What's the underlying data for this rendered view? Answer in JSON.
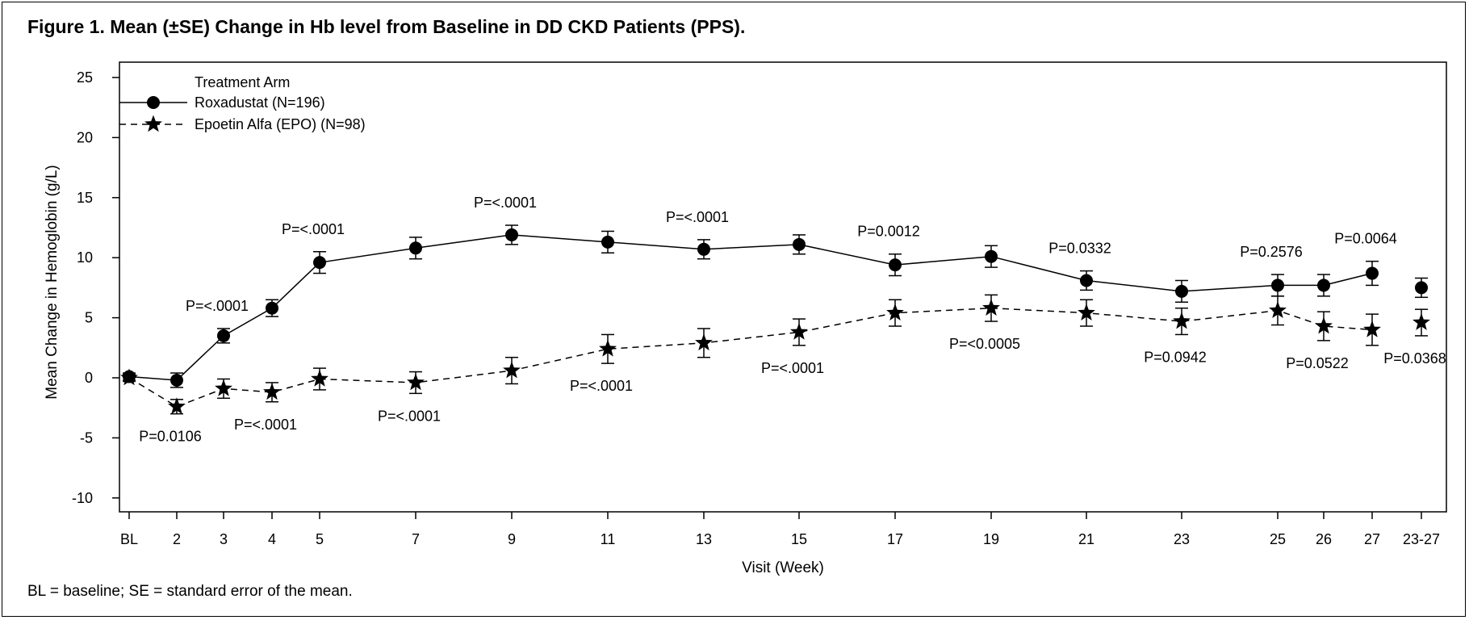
{
  "title": "Figure 1. Mean (±SE) Change in Hb level from Baseline in DD CKD Patients (PPS).",
  "footnote": "BL = baseline; SE = standard error of the mean.",
  "chart_data": {
    "type": "line",
    "xlabel": "Visit (Week)",
    "ylabel": "Mean Change in Hemoglobin (g/L)",
    "ylim": [
      -10,
      25
    ],
    "yticks": [
      -10,
      -5,
      0,
      5,
      10,
      15,
      20,
      25
    ],
    "categories": [
      "BL",
      "2",
      "3",
      "4",
      "5",
      "7",
      "9",
      "11",
      "13",
      "15",
      "17",
      "19",
      "21",
      "23",
      "25",
      "26",
      "27",
      "23-27"
    ],
    "grid": false,
    "legend": {
      "title": "Treatment Arm",
      "placement": "top-left"
    },
    "series": [
      {
        "name": "Roxadustat (N=196)",
        "marker": "circle",
        "line": "solid",
        "values": [
          0.1,
          -0.2,
          3.5,
          5.8,
          9.6,
          10.8,
          11.9,
          11.3,
          10.7,
          11.1,
          9.4,
          10.1,
          8.1,
          7.2,
          7.7,
          7.7,
          8.7,
          7.5
        ],
        "se": [
          0.3,
          0.6,
          0.6,
          0.7,
          0.9,
          0.9,
          0.8,
          0.9,
          0.8,
          0.8,
          0.9,
          0.9,
          0.8,
          0.9,
          0.9,
          0.9,
          1.0,
          0.8
        ],
        "connected": [
          true,
          true,
          true,
          true,
          true,
          true,
          true,
          true,
          true,
          true,
          true,
          true,
          true,
          true,
          true,
          true,
          true,
          false
        ]
      },
      {
        "name": "Epoetin Alfa (EPO) (N=98)",
        "marker": "star",
        "line": "dashed",
        "values": [
          0.0,
          -2.4,
          -0.9,
          -1.2,
          -0.1,
          -0.4,
          0.6,
          2.4,
          2.9,
          3.8,
          5.4,
          5.8,
          5.4,
          4.7,
          5.6,
          4.3,
          4.0,
          4.6
        ],
        "se": [
          0.3,
          0.6,
          0.8,
          0.8,
          0.9,
          0.9,
          1.1,
          1.2,
          1.2,
          1.1,
          1.1,
          1.1,
          1.1,
          1.1,
          1.2,
          1.2,
          1.3,
          1.1
        ],
        "connected": [
          true,
          true,
          true,
          true,
          true,
          true,
          true,
          true,
          true,
          true,
          true,
          true,
          true,
          true,
          true,
          true,
          true,
          false
        ]
      }
    ],
    "annotations": [
      {
        "text": "P=0.0106",
        "category": "2",
        "position": "below"
      },
      {
        "text": "P=<.0001",
        "category": "3",
        "position": "above"
      },
      {
        "text": "P=<.0001",
        "category": "4",
        "position": "below"
      },
      {
        "text": "P=<.0001",
        "category": "5",
        "position": "above"
      },
      {
        "text": "P=<.0001",
        "category": "7",
        "position": "below"
      },
      {
        "text": "P=<.0001",
        "category": "9",
        "position": "above"
      },
      {
        "text": "P=<.0001",
        "category": "11",
        "position": "below"
      },
      {
        "text": "P=<.0001",
        "category": "13",
        "position": "above"
      },
      {
        "text": "P=<.0001",
        "category": "15",
        "position": "below"
      },
      {
        "text": "P=0.0012",
        "category": "17",
        "position": "above"
      },
      {
        "text": "P=<0.0005",
        "category": "19",
        "position": "below"
      },
      {
        "text": "P=0.0332",
        "category": "21",
        "position": "above"
      },
      {
        "text": "P=0.0942",
        "category": "23",
        "position": "below"
      },
      {
        "text": "P=0.2576",
        "category": "25",
        "position": "above"
      },
      {
        "text": "P=0.0522",
        "category": "26",
        "position": "below"
      },
      {
        "text": "P=0.0064",
        "category": "27",
        "position": "above"
      },
      {
        "text": "P=0.0368",
        "category": "23-27",
        "position": "below"
      }
    ]
  }
}
